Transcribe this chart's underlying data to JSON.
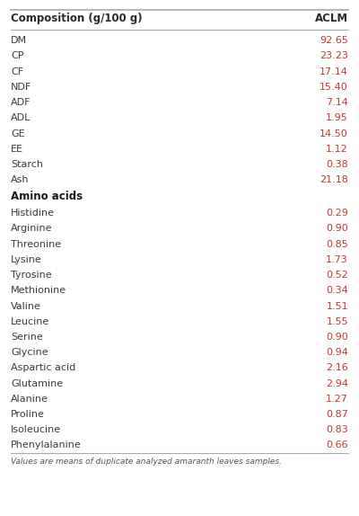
{
  "header_left": "Composition (g/100 g)",
  "header_right": "ACLM",
  "composition_rows": [
    [
      "DM",
      "92.65"
    ],
    [
      "CP",
      "23.23"
    ],
    [
      "CF",
      "17.14"
    ],
    [
      "NDF",
      "15.40"
    ],
    [
      "ADF",
      "7.14"
    ],
    [
      "ADL",
      "1.95"
    ],
    [
      "GE",
      "14.50"
    ],
    [
      "EE",
      "1.12"
    ],
    [
      "Starch",
      "0.38"
    ],
    [
      "Ash",
      "21.18"
    ]
  ],
  "section_header": "Amino acids",
  "amino_rows": [
    [
      "Histidine",
      "0.29"
    ],
    [
      "Arginine",
      "0.90"
    ],
    [
      "Threonine",
      "0.85"
    ],
    [
      "Lysine",
      "1.73"
    ],
    [
      "Tyrosine",
      "0.52"
    ],
    [
      "Methionine",
      "0.34"
    ],
    [
      "Valine",
      "1.51"
    ],
    [
      "Leucine",
      "1.55"
    ],
    [
      "Serine",
      "0.90"
    ],
    [
      "Glycine",
      "0.94"
    ],
    [
      "Aspartic acid",
      "2.16"
    ],
    [
      "Glutamine",
      "2.94"
    ],
    [
      "Alanine",
      "1.27"
    ],
    [
      "Proline",
      "0.87"
    ],
    [
      "Isoleucine",
      "0.83"
    ],
    [
      "Phenylalanine",
      "0.66"
    ]
  ],
  "footnote": "Values are means of duplicate analyzed amaranth leaves samples.",
  "bg_color": "#ffffff",
  "header_color": "#2a2a2a",
  "row_color": "#3a3a3a",
  "value_color": "#c0392b",
  "section_color": "#1a1a1a",
  "line_color": "#aaaaaa",
  "footnote_color": "#555555"
}
